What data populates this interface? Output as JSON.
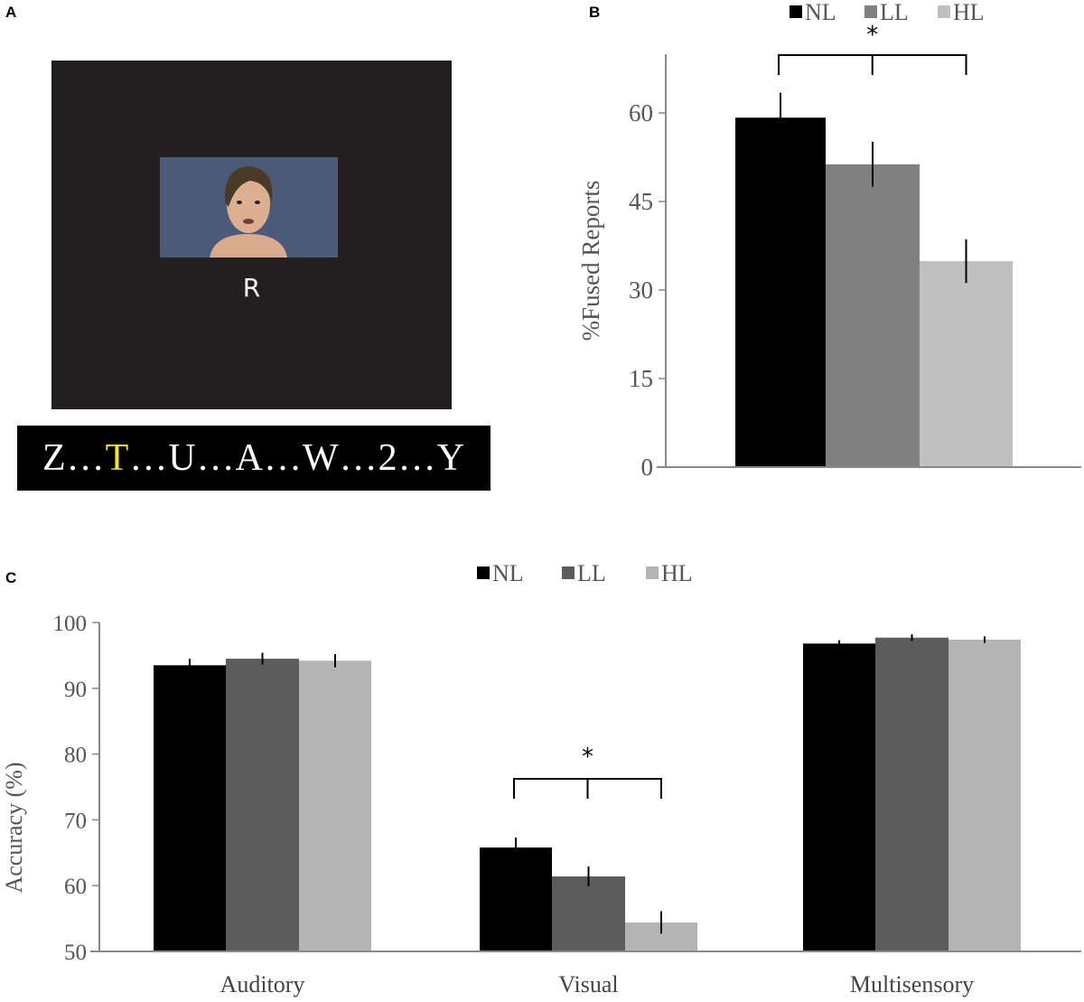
{
  "panel_labels": {
    "a": "A",
    "b": "B",
    "c": "C"
  },
  "panel_a": {
    "image": "face-video-frame",
    "center_letter": "R",
    "sequence": [
      {
        "text": "Z",
        "highlight": false
      },
      {
        "text": "…",
        "highlight": false
      },
      {
        "text": "T",
        "highlight": true
      },
      {
        "text": "…U…A…W…2…Y",
        "highlight": false
      }
    ],
    "highlight_color": "#f5e614",
    "background_color": "#231f20"
  },
  "chart_data": [
    {
      "type": "bar",
      "panel": "B",
      "ylabel": "%Fused Reports",
      "xlabel": "",
      "ylim": [
        0,
        70
      ],
      "yticks": [
        0,
        15,
        30,
        45,
        60
      ],
      "grid": false,
      "legend_position": "top",
      "categories": [
        ""
      ],
      "series": [
        {
          "name": "NL",
          "color": "#000000",
          "values": [
            59.2
          ],
          "errors": [
            4.2
          ]
        },
        {
          "name": "LL",
          "color": "#808080",
          "values": [
            51.3
          ],
          "errors": [
            3.8
          ]
        },
        {
          "name": "HL",
          "color": "#c0c0c0",
          "values": [
            34.9
          ],
          "errors": [
            3.7
          ]
        }
      ],
      "annotations": [
        {
          "text": "*",
          "type": "significance-bracket",
          "category": 0
        }
      ]
    },
    {
      "type": "bar",
      "panel": "C",
      "ylabel": "Accuracy (%)",
      "xlabel": "",
      "ylim": [
        50,
        100
      ],
      "yticks": [
        50,
        60,
        70,
        80,
        90,
        100
      ],
      "grid": false,
      "legend_position": "top",
      "categories": [
        "Auditory",
        "Visual",
        "Multisensory"
      ],
      "series": [
        {
          "name": "NL",
          "color": "#000000",
          "values": [
            93.5,
            65.8,
            96.8
          ],
          "errors": [
            1.0,
            1.5,
            0.5
          ]
        },
        {
          "name": "LL",
          "color": "#5c5c5c",
          "values": [
            94.5,
            61.4,
            97.7
          ],
          "errors": [
            0.9,
            1.5,
            0.5
          ]
        },
        {
          "name": "HL",
          "color": "#b4b4b4",
          "values": [
            94.2,
            54.4,
            97.4
          ],
          "errors": [
            1.0,
            1.7,
            0.5
          ]
        }
      ],
      "annotations": [
        {
          "text": "*",
          "type": "significance-bracket",
          "category": 1
        }
      ]
    }
  ]
}
